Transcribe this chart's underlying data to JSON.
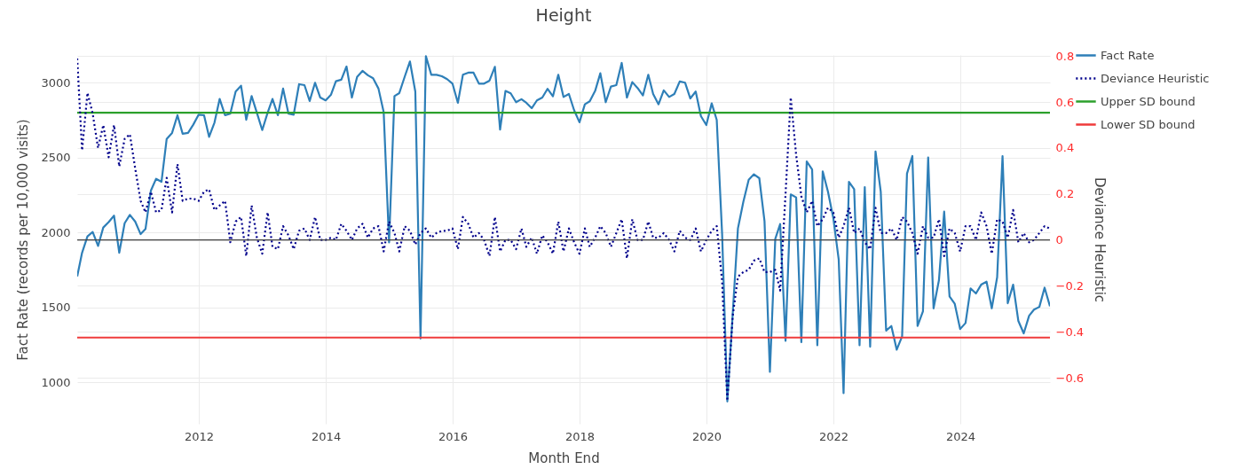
{
  "chart_data": {
    "type": "line",
    "title": "Height",
    "xlabel": "Month End",
    "ylabel": "Fact Rate (records per 10,000 visits)",
    "y2label": "Deviance Heuristic",
    "x": [
      "2010-01-31",
      "2010-02-28",
      "2010-03-31",
      "2010-04-30",
      "2010-05-31",
      "2010-06-30",
      "2010-07-31",
      "2010-08-31",
      "2010-09-30",
      "2010-10-31",
      "2010-11-30",
      "2010-12-31",
      "2011-01-31",
      "2011-02-28",
      "2011-03-31",
      "2011-04-30",
      "2011-05-31",
      "2011-06-30",
      "2011-07-31",
      "2011-08-31",
      "2011-09-30",
      "2011-10-31",
      "2011-11-30",
      "2011-12-31",
      "2012-01-31",
      "2012-02-29",
      "2012-03-31",
      "2012-04-30",
      "2012-05-31",
      "2012-06-30",
      "2012-07-31",
      "2012-08-31",
      "2012-09-30",
      "2012-10-31",
      "2012-11-30",
      "2012-12-31",
      "2013-01-31",
      "2013-02-28",
      "2013-03-31",
      "2013-04-30",
      "2013-05-31",
      "2013-06-30",
      "2013-07-31",
      "2013-08-31",
      "2013-09-30",
      "2013-10-31",
      "2013-11-30",
      "2013-12-31",
      "2014-01-31",
      "2014-02-28",
      "2014-03-31",
      "2014-04-30",
      "2014-05-31",
      "2014-06-30",
      "2014-07-31",
      "2014-08-31",
      "2014-09-30",
      "2014-10-31",
      "2014-11-30",
      "2014-12-31",
      "2015-01-31",
      "2015-02-28",
      "2015-03-31",
      "2015-04-30",
      "2015-05-31",
      "2015-06-30",
      "2015-07-31",
      "2015-08-31",
      "2015-09-30",
      "2015-10-31",
      "2015-11-30",
      "2015-12-31",
      "2016-01-31",
      "2016-02-29",
      "2016-03-31",
      "2016-04-30",
      "2016-05-31",
      "2016-06-30",
      "2016-07-31",
      "2016-08-31",
      "2016-09-30",
      "2016-10-31",
      "2016-11-30",
      "2016-12-31",
      "2017-01-31",
      "2017-02-28",
      "2017-03-31",
      "2017-04-30",
      "2017-05-31",
      "2017-06-30",
      "2017-07-31",
      "2017-08-31",
      "2017-09-30",
      "2017-10-31",
      "2017-11-30",
      "2017-12-31",
      "2018-01-31",
      "2018-02-28",
      "2018-03-31",
      "2018-04-30",
      "2018-05-31",
      "2018-06-30",
      "2018-07-31",
      "2018-08-31",
      "2018-09-30",
      "2018-10-31",
      "2018-11-30",
      "2018-12-31",
      "2019-01-31",
      "2019-02-28",
      "2019-03-31",
      "2019-04-30",
      "2019-05-31",
      "2019-06-30",
      "2019-07-31",
      "2019-08-31",
      "2019-09-30",
      "2019-10-31",
      "2019-11-30",
      "2019-12-31",
      "2020-01-31",
      "2020-02-29",
      "2020-03-31",
      "2020-04-30",
      "2020-05-31",
      "2020-06-30",
      "2020-07-31",
      "2020-08-31",
      "2020-09-30",
      "2020-10-31",
      "2020-11-30",
      "2020-12-31",
      "2021-01-31",
      "2021-02-28",
      "2021-03-31",
      "2021-04-30",
      "2021-05-31",
      "2021-06-30",
      "2021-07-31",
      "2021-08-31",
      "2021-09-30",
      "2021-10-31",
      "2021-11-30",
      "2021-12-31",
      "2022-01-31",
      "2022-02-28",
      "2022-03-31",
      "2022-04-30",
      "2022-05-31",
      "2022-06-30",
      "2022-07-31",
      "2022-08-31",
      "2022-09-30",
      "2022-10-31",
      "2022-11-30",
      "2022-12-31",
      "2023-01-31",
      "2023-02-28",
      "2023-03-31",
      "2023-04-30",
      "2023-05-31",
      "2023-06-30",
      "2023-07-31",
      "2023-08-31",
      "2023-09-30",
      "2023-10-31",
      "2023-11-30",
      "2023-12-31",
      "2024-01-31",
      "2024-02-29",
      "2024-03-31",
      "2024-04-30",
      "2024-05-31",
      "2024-06-30",
      "2024-07-31",
      "2024-08-31",
      "2024-09-30",
      "2024-10-31",
      "2024-11-30",
      "2024-12-31",
      "2025-01-31",
      "2025-02-28",
      "2025-03-31",
      "2025-04-30",
      "2025-05-31"
    ],
    "xlim": [
      "2010-01-31",
      "2025-05-31"
    ],
    "xticks": [
      "2012",
      "2014",
      "2016",
      "2018",
      "2020",
      "2022",
      "2024"
    ],
    "ylim": [
      725,
      3185
    ],
    "yticks": [
      1000,
      1500,
      2000,
      2500,
      3000
    ],
    "y2lim": [
      -0.8,
      0.805
    ],
    "y2ticks": [
      -0.6,
      -0.4,
      -0.2,
      0,
      0.2,
      0.4,
      0.6,
      0.8
    ],
    "grid": true,
    "legend": "top right",
    "series": [
      {
        "name": "Fact Rate",
        "color": "#2e7fb8",
        "line_style": "solid",
        "values": [
          1708,
          1866,
          1975,
          2004,
          1911,
          2034,
          2070,
          2113,
          1866,
          2063,
          2118,
          2073,
          1990,
          2024,
          2280,
          2359,
          2339,
          2625,
          2665,
          2783,
          2659,
          2665,
          2720,
          2787,
          2783,
          2639,
          2734,
          2892,
          2783,
          2793,
          2941,
          2980,
          2753,
          2911,
          2800,
          2684,
          2800,
          2892,
          2783,
          2961,
          2793,
          2787,
          2990,
          2984,
          2878,
          3000,
          2901,
          2882,
          2921,
          3010,
          3020,
          3108,
          2901,
          3039,
          3079,
          3050,
          3030,
          2961,
          2803,
          1935,
          2911,
          2931,
          3040,
          3142,
          2941,
          1294,
          3177,
          3053,
          3053,
          3043,
          3024,
          2994,
          2866,
          3053,
          3067,
          3067,
          2994,
          2994,
          3014,
          3106,
          2688,
          2945,
          2929,
          2870,
          2890,
          2866,
          2830,
          2882,
          2901,
          2959,
          2909,
          3053,
          2905,
          2925,
          2817,
          2736,
          2856,
          2876,
          2945,
          3063,
          2870,
          2974,
          2984,
          3132,
          2901,
          3004,
          2965,
          2915,
          3053,
          2925,
          2856,
          2949,
          2905,
          2925,
          3008,
          3000,
          2895,
          2941,
          2777,
          2718,
          2862,
          2752,
          1990,
          874,
          1460,
          2028,
          2205,
          2353,
          2389,
          2363,
          2077,
          1071,
          1959,
          2057,
          1278,
          2255,
          2235,
          1269,
          2475,
          2422,
          1249,
          2408,
          2274,
          2097,
          1821,
          929,
          2339,
          2290,
          1249,
          2304,
          1239,
          2541,
          2274,
          1347,
          1377,
          1219,
          1308,
          2393,
          2511,
          1377,
          1476,
          2501,
          1495,
          1683,
          2140,
          1574,
          1525,
          1357,
          1397,
          1628,
          1594,
          1653,
          1673,
          1495,
          1702,
          2511,
          1529,
          1653,
          1411,
          1328,
          1446,
          1486,
          1505,
          1633,
          1509
        ]
      },
      {
        "name": "Deviance Heuristic",
        "color": "#00008b",
        "axis": "y2",
        "line_style": "dotted",
        "values": [
          0.79,
          0.39,
          0.64,
          0.55,
          0.4,
          0.5,
          0.36,
          0.5,
          0.32,
          0.44,
          0.46,
          0.31,
          0.17,
          0.12,
          0.21,
          0.12,
          0.13,
          0.27,
          0.12,
          0.33,
          0.17,
          0.18,
          0.18,
          0.17,
          0.21,
          0.22,
          0.13,
          0.15,
          0.17,
          -0.01,
          0.08,
          0.1,
          -0.07,
          0.15,
          0.01,
          -0.06,
          0.12,
          -0.03,
          -0.04,
          0.06,
          0.02,
          -0.04,
          0.04,
          0.05,
          0,
          0.1,
          0,
          0,
          0.01,
          0,
          0.07,
          0.04,
          0,
          0.05,
          0.07,
          0.01,
          0.05,
          0.06,
          -0.05,
          0.08,
          0.03,
          -0.05,
          0.06,
          0.04,
          -0.02,
          0.03,
          0.05,
          0.01,
          0.03,
          0.04,
          0.04,
          0.05,
          -0.04,
          0.1,
          0.07,
          0.01,
          0.03,
          0,
          -0.07,
          0.1,
          -0.05,
          0,
          0,
          -0.04,
          0.05,
          -0.03,
          0.01,
          -0.06,
          0.02,
          -0.01,
          -0.06,
          0.08,
          -0.05,
          0.05,
          -0.01,
          -0.06,
          0.05,
          -0.03,
          0.01,
          0.06,
          0.03,
          -0.03,
          0.03,
          0.09,
          -0.08,
          0.09,
          0,
          0,
          0.08,
          0.01,
          0.01,
          0.03,
          0,
          -0.05,
          0.04,
          0.01,
          0,
          0.05,
          -0.05,
          0,
          0.04,
          0.06,
          -0.18,
          -0.7,
          -0.33,
          -0.16,
          -0.14,
          -0.13,
          -0.09,
          -0.08,
          -0.14,
          -0.14,
          -0.13,
          -0.22,
          0.2,
          0.62,
          0.37,
          0.19,
          0.12,
          0.17,
          0.06,
          0.09,
          0.14,
          0.12,
          0.01,
          0.06,
          0.14,
          0.03,
          0.05,
          -0.01,
          -0.04,
          0.14,
          0.03,
          0.03,
          0.05,
          0,
          0.1,
          0.08,
          0.03,
          -0.06,
          0.06,
          0.01,
          0.01,
          0.09,
          -0.07,
          0.05,
          0.03,
          -0.05,
          0.06,
          0.06,
          0,
          0.12,
          0.06,
          -0.06,
          0.09,
          0.08,
          0.01,
          0.13,
          -0.01,
          0.03,
          -0.01,
          0,
          0.03,
          0.06,
          0.05
        ]
      },
      {
        "name": "Upper SD bound",
        "color": "#2ca02c",
        "line_style": "solid",
        "x": [
          "2010-01-31",
          "2025-05-31"
        ],
        "values": [
          2800,
          2800
        ]
      },
      {
        "name": "Lower SD bound",
        "color": "#ef3b3b",
        "line_style": "solid",
        "x": [
          "2010-01-31",
          "2025-05-31"
        ],
        "values": [
          1300,
          1300
        ]
      }
    ],
    "ref_lines": [
      {
        "axis": "y2",
        "value": 0,
        "color": "#444444"
      }
    ]
  }
}
